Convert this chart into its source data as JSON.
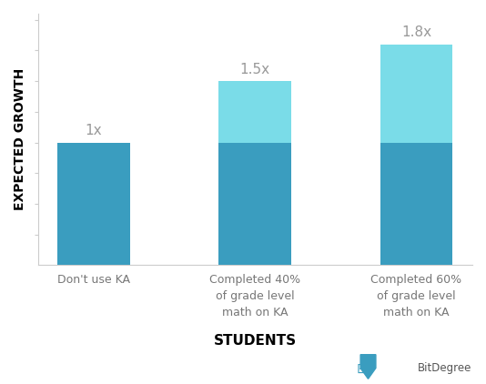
{
  "categories": [
    "Don't use KA",
    "Completed 40%\nof grade level\nmath on KA",
    "Completed 60%\nof grade level\nmath on KA"
  ],
  "base_values": [
    1.0,
    1.0,
    1.0
  ],
  "extra_values": [
    0.0,
    0.5,
    0.8
  ],
  "labels": [
    "1x",
    "1.5x",
    "1.8x"
  ],
  "bar_color_base": "#3A9DBF",
  "bar_color_extra": "#7ADCE8",
  "bar_width": 0.45,
  "ylabel": "EXPECTED GROWTH",
  "xlabel": "STUDENTS",
  "ylim": [
    0,
    2.05
  ],
  "background_color": "#ffffff",
  "label_color": "#999999",
  "axis_color": "#777777",
  "label_fontsize": 10,
  "annotation_fontsize": 11,
  "xlabel_fontsize": 11
}
